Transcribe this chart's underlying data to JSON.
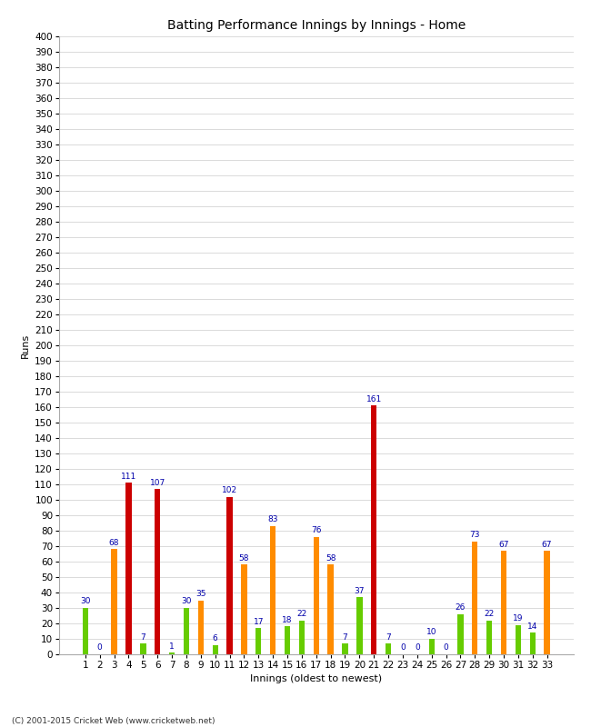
{
  "title": "Batting Performance Innings by Innings - Home",
  "xlabel": "Innings (oldest to newest)",
  "ylabel": "Runs",
  "innings": [
    1,
    2,
    3,
    4,
    5,
    6,
    7,
    8,
    9,
    10,
    11,
    12,
    13,
    14,
    15,
    16,
    17,
    18,
    19,
    20,
    21,
    22,
    23,
    24,
    25,
    26,
    27,
    28,
    29,
    30,
    31,
    32,
    33
  ],
  "values": [
    30,
    0,
    68,
    111,
    7,
    107,
    1,
    30,
    35,
    6,
    102,
    58,
    17,
    83,
    18,
    22,
    76,
    58,
    7,
    37,
    161,
    7,
    0,
    0,
    10,
    0,
    26,
    73,
    22,
    67,
    19,
    14,
    67
  ],
  "bar_colors": [
    "green",
    "green",
    "orange",
    "red",
    "green",
    "red",
    "green",
    "green",
    "orange",
    "green",
    "red",
    "orange",
    "green",
    "orange",
    "green",
    "green",
    "orange",
    "orange",
    "green",
    "green",
    "red",
    "green",
    "green",
    "green",
    "green",
    "green",
    "green",
    "orange",
    "green",
    "orange",
    "green",
    "green",
    "orange"
  ],
  "century_color": "#cc0000",
  "fifty_color": "#ff8c00",
  "other_color": "#66cc00",
  "ylim": [
    0,
    400
  ],
  "ytick_step": 10,
  "bg_color": "#ffffff",
  "grid_color": "#cccccc",
  "label_color": "#0000aa",
  "label_fontsize": 6.5,
  "axis_tick_fontsize": 7.5,
  "xlabel_fontsize": 8,
  "ylabel_fontsize": 8,
  "title_fontsize": 10,
  "bar_width": 0.4,
  "footer": "(C) 2001-2015 Cricket Web (www.cricketweb.net)"
}
